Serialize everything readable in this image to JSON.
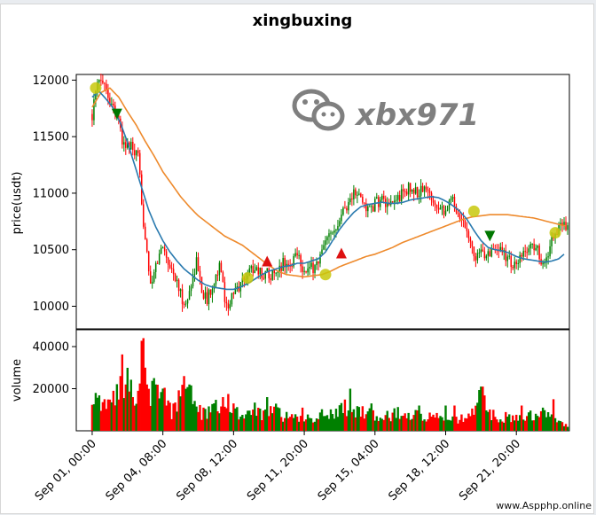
{
  "chart_data": [
    {
      "type": "candlestick",
      "title": "xingbuxing",
      "ylabel": "price(usdt)",
      "ylim": [
        9800,
        12050
      ],
      "yticks": [
        10000,
        10500,
        11000,
        11500,
        12000
      ],
      "xlim": [
        -9,
        270
      ],
      "x_ticks": [
        {
          "x": 0,
          "label": "Sep 01, 00:00"
        },
        {
          "x": 40,
          "label": "Sep 04, 08:00"
        },
        {
          "x": 80,
          "label": "Sep 08, 12:00"
        },
        {
          "x": 120,
          "label": "Sep 11, 20:00"
        },
        {
          "x": 160,
          "label": "Sep 15, 04:00"
        },
        {
          "x": 200,
          "label": "Sep 18, 12:00"
        },
        {
          "x": 240,
          "label": "Sep 21, 20:00"
        }
      ],
      "ohlc_anchors": [
        [
          0,
          11700
        ],
        [
          3,
          11950
        ],
        [
          6,
          12030
        ],
        [
          10,
          11820
        ],
        [
          14,
          11720
        ],
        [
          17,
          11450
        ],
        [
          22,
          11400
        ],
        [
          26,
          11300
        ],
        [
          29,
          10750
        ],
        [
          31,
          10500
        ],
        [
          33,
          10150
        ],
        [
          36,
          10350
        ],
        [
          40,
          10550
        ],
        [
          43,
          10400
        ],
        [
          47,
          10250
        ],
        [
          50,
          10100
        ],
        [
          53,
          10000
        ],
        [
          56,
          10200
        ],
        [
          59,
          10400
        ],
        [
          62,
          10150
        ],
        [
          65,
          10050
        ],
        [
          68,
          10200
        ],
        [
          72,
          10350
        ],
        [
          76,
          10000
        ],
        [
          80,
          10100
        ],
        [
          84,
          10200
        ],
        [
          88,
          10300
        ],
        [
          92,
          10350
        ],
        [
          96,
          10280
        ],
        [
          100,
          10300
        ],
        [
          104,
          10250
        ],
        [
          108,
          10400
        ],
        [
          112,
          10350
        ],
        [
          116,
          10500
        ],
        [
          120,
          10300
        ],
        [
          124,
          10330
        ],
        [
          128,
          10400
        ],
        [
          132,
          10550
        ],
        [
          136,
          10650
        ],
        [
          140,
          10800
        ],
        [
          144,
          10900
        ],
        [
          148,
          11000
        ],
        [
          152,
          10950
        ],
        [
          156,
          10850
        ],
        [
          160,
          10900
        ],
        [
          164,
          10950
        ],
        [
          168,
          10850
        ],
        [
          172,
          10950
        ],
        [
          176,
          11000
        ],
        [
          180,
          11050
        ],
        [
          184,
          11000
        ],
        [
          188,
          11050
        ],
        [
          192,
          10950
        ],
        [
          196,
          10900
        ],
        [
          200,
          10850
        ],
        [
          204,
          10950
        ],
        [
          208,
          10800
        ],
        [
          212,
          10700
        ],
        [
          216,
          10450
        ],
        [
          220,
          10450
        ],
        [
          224,
          10500
        ],
        [
          228,
          10450
        ],
        [
          232,
          10500
        ],
        [
          236,
          10400
        ],
        [
          240,
          10350
        ],
        [
          244,
          10450
        ],
        [
          248,
          10550
        ],
        [
          252,
          10500
        ],
        [
          256,
          10350
        ],
        [
          260,
          10600
        ],
        [
          264,
          10700
        ],
        [
          267,
          10720
        ]
      ],
      "ma_fast_anchors": [
        [
          0,
          11850
        ],
        [
          4,
          11900
        ],
        [
          8,
          11830
        ],
        [
          12,
          11750
        ],
        [
          16,
          11620
        ],
        [
          20,
          11450
        ],
        [
          24,
          11250
        ],
        [
          28,
          11050
        ],
        [
          32,
          10850
        ],
        [
          36,
          10700
        ],
        [
          40,
          10580
        ],
        [
          44,
          10480
        ],
        [
          48,
          10400
        ],
        [
          52,
          10330
        ],
        [
          56,
          10280
        ],
        [
          60,
          10230
        ],
        [
          64,
          10190
        ],
        [
          68,
          10170
        ],
        [
          72,
          10160
        ],
        [
          76,
          10150
        ],
        [
          80,
          10150
        ],
        [
          84,
          10170
        ],
        [
          88,
          10200
        ],
        [
          92,
          10240
        ],
        [
          96,
          10280
        ],
        [
          100,
          10310
        ],
        [
          104,
          10330
        ],
        [
          108,
          10350
        ],
        [
          112,
          10360
        ],
        [
          116,
          10380
        ],
        [
          120,
          10380
        ],
        [
          124,
          10400
        ],
        [
          128,
          10420
        ],
        [
          132,
          10480
        ],
        [
          136,
          10580
        ],
        [
          140,
          10680
        ],
        [
          144,
          10760
        ],
        [
          148,
          10830
        ],
        [
          152,
          10880
        ],
        [
          156,
          10900
        ],
        [
          160,
          10910
        ],
        [
          164,
          10920
        ],
        [
          168,
          10910
        ],
        [
          172,
          10910
        ],
        [
          176,
          10920
        ],
        [
          180,
          10940
        ],
        [
          184,
          10950
        ],
        [
          188,
          10960
        ],
        [
          192,
          10970
        ],
        [
          196,
          10960
        ],
        [
          200,
          10930
        ],
        [
          204,
          10890
        ],
        [
          208,
          10840
        ],
        [
          212,
          10770
        ],
        [
          216,
          10670
        ],
        [
          220,
          10580
        ],
        [
          224,
          10520
        ],
        [
          228,
          10500
        ],
        [
          232,
          10490
        ],
        [
          236,
          10470
        ],
        [
          240,
          10440
        ],
        [
          244,
          10420
        ],
        [
          248,
          10410
        ],
        [
          252,
          10400
        ],
        [
          256,
          10390
        ],
        [
          260,
          10400
        ],
        [
          264,
          10420
        ],
        [
          267,
          10460
        ]
      ],
      "ma_slow_anchors": [
        [
          0,
          11760
        ],
        [
          5,
          11890
        ],
        [
          10,
          11930
        ],
        [
          15,
          11850
        ],
        [
          20,
          11720
        ],
        [
          25,
          11600
        ],
        [
          30,
          11460
        ],
        [
          35,
          11330
        ],
        [
          40,
          11190
        ],
        [
          45,
          11080
        ],
        [
          50,
          10970
        ],
        [
          55,
          10880
        ],
        [
          60,
          10800
        ],
        [
          65,
          10740
        ],
        [
          70,
          10680
        ],
        [
          75,
          10620
        ],
        [
          80,
          10580
        ],
        [
          85,
          10540
        ],
        [
          90,
          10480
        ],
        [
          95,
          10420
        ],
        [
          100,
          10360
        ],
        [
          105,
          10310
        ],
        [
          110,
          10280
        ],
        [
          115,
          10270
        ],
        [
          120,
          10260
        ],
        [
          125,
          10270
        ],
        [
          130,
          10280
        ],
        [
          135,
          10310
        ],
        [
          140,
          10350
        ],
        [
          145,
          10380
        ],
        [
          150,
          10410
        ],
        [
          155,
          10440
        ],
        [
          160,
          10460
        ],
        [
          165,
          10490
        ],
        [
          170,
          10520
        ],
        [
          175,
          10560
        ],
        [
          180,
          10590
        ],
        [
          185,
          10620
        ],
        [
          190,
          10650
        ],
        [
          195,
          10680
        ],
        [
          200,
          10710
        ],
        [
          205,
          10740
        ],
        [
          210,
          10770
        ],
        [
          215,
          10790
        ],
        [
          220,
          10800
        ],
        [
          225,
          10810
        ],
        [
          230,
          10810
        ],
        [
          235,
          10810
        ],
        [
          240,
          10800
        ],
        [
          245,
          10790
        ],
        [
          250,
          10780
        ],
        [
          255,
          10760
        ],
        [
          260,
          10740
        ],
        [
          265,
          10720
        ],
        [
          268,
          10710
        ]
      ],
      "signals": [
        {
          "kind": "circle",
          "x": 2,
          "y": 11930,
          "color": "#c8c80a"
        },
        {
          "kind": "down",
          "x": 14,
          "y": 11700,
          "color": "#007700"
        },
        {
          "kind": "circle",
          "x": 88,
          "y": 10250,
          "color": "#c8c80a"
        },
        {
          "kind": "up",
          "x": 99,
          "y": 10400,
          "color": "#dd1111"
        },
        {
          "kind": "circle",
          "x": 132,
          "y": 10280,
          "color": "#c8c80a"
        },
        {
          "kind": "up",
          "x": 141,
          "y": 10470,
          "color": "#dd1111"
        },
        {
          "kind": "circle",
          "x": 216,
          "y": 10840,
          "color": "#c8c80a"
        },
        {
          "kind": "down",
          "x": 225,
          "y": 10620,
          "color": "#007700"
        },
        {
          "kind": "circle",
          "x": 262,
          "y": 10650,
          "color": "#c8c80a"
        }
      ],
      "colors": {
        "up": "#008000",
        "down": "#ff0000",
        "ma_fast": "#2a7aaf",
        "ma_slow": "#ee8a2c"
      }
    },
    {
      "type": "bar",
      "ylabel": "volume",
      "ylim": [
        0,
        48000
      ],
      "yticks": [
        20000,
        40000
      ],
      "volume_anchors": [
        [
          0,
          9000
        ],
        [
          5,
          14000
        ],
        [
          10,
          12000
        ],
        [
          14,
          18000
        ],
        [
          17,
          26000
        ],
        [
          20,
          22000
        ],
        [
          24,
          13000
        ],
        [
          27,
          19000
        ],
        [
          29,
          44000
        ],
        [
          31,
          22000
        ],
        [
          34,
          17000
        ],
        [
          37,
          22000
        ],
        [
          40,
          18000
        ],
        [
          45,
          8000
        ],
        [
          48,
          15000
        ],
        [
          51,
          19000
        ],
        [
          54,
          26000
        ],
        [
          57,
          12000
        ],
        [
          60,
          9000
        ],
        [
          64,
          8000
        ],
        [
          68,
          11000
        ],
        [
          72,
          13000
        ],
        [
          76,
          15000
        ],
        [
          80,
          10000
        ],
        [
          84,
          8000
        ],
        [
          88,
          7000
        ],
        [
          92,
          10000
        ],
        [
          96,
          8000
        ],
        [
          100,
          9000
        ],
        [
          104,
          10000
        ],
        [
          108,
          7000
        ],
        [
          112,
          6000
        ],
        [
          116,
          6000
        ],
        [
          120,
          7000
        ],
        [
          124,
          6000
        ],
        [
          128,
          7000
        ],
        [
          132,
          9000
        ],
        [
          136,
          8000
        ],
        [
          140,
          10000
        ],
        [
          144,
          11000
        ],
        [
          148,
          8000
        ],
        [
          152,
          9000
        ],
        [
          156,
          8000
        ],
        [
          160,
          7000
        ],
        [
          164,
          8000
        ],
        [
          168,
          7000
        ],
        [
          172,
          9000
        ],
        [
          176,
          7000
        ],
        [
          180,
          6000
        ],
        [
          184,
          8000
        ],
        [
          188,
          6000
        ],
        [
          192,
          7000
        ],
        [
          196,
          6000
        ],
        [
          200,
          5000
        ],
        [
          204,
          5000
        ],
        [
          208,
          6000
        ],
        [
          212,
          5000
        ],
        [
          216,
          9000
        ],
        [
          220,
          18000
        ],
        [
          224,
          8000
        ],
        [
          228,
          7000
        ],
        [
          232,
          6000
        ],
        [
          236,
          7000
        ],
        [
          240,
          6000
        ],
        [
          244,
          6000
        ],
        [
          248,
          7000
        ],
        [
          252,
          6000
        ],
        [
          256,
          8000
        ],
        [
          260,
          7000
        ],
        [
          264,
          5000
        ],
        [
          268,
          3000
        ]
      ],
      "volume_spikes": [
        [
          2,
          18000
        ],
        [
          7,
          15000
        ],
        [
          12,
          19000
        ],
        [
          16,
          26000
        ],
        [
          19,
          22000
        ],
        [
          23,
          16000
        ],
        [
          26,
          19000
        ],
        [
          29,
          44000
        ],
        [
          31,
          22000
        ],
        [
          36,
          22000
        ],
        [
          42,
          12000
        ],
        [
          52,
          26000
        ],
        [
          55,
          22000
        ],
        [
          63,
          11000
        ],
        [
          74,
          16000
        ],
        [
          80,
          13000
        ],
        [
          99,
          16000
        ],
        [
          119,
          11000
        ],
        [
          146,
          20000
        ],
        [
          158,
          13000
        ],
        [
          185,
          12000
        ],
        [
          200,
          12000
        ],
        [
          205,
          12000
        ],
        [
          220,
          21000
        ],
        [
          221,
          21000
        ],
        [
          243,
          12000
        ],
        [
          255,
          11000
        ],
        [
          261,
          15000
        ]
      ]
    }
  ]
}
